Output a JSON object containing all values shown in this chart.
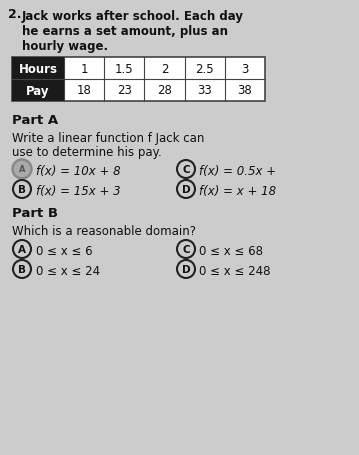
{
  "bg_color": "#cccccc",
  "problem_text_line1": "Jack works after school. Each day",
  "problem_text_line2": "he earns a set amount, plus an",
  "problem_text_line3": "hourly wage.",
  "hours_vals": [
    "1",
    "1.5",
    "2",
    "2.5",
    "3"
  ],
  "pay_vals": [
    "18",
    "23",
    "28",
    "33",
    "38"
  ],
  "part_a_label": "Part A",
  "part_a_q1": "Write a linear function f Jack can",
  "part_a_q2": "use to determine his pay.",
  "part_a_A": "f(x) = 10x + 8",
  "part_a_C": "f(x) = 0.5x +",
  "part_a_B": "f(x) = 15x + 3",
  "part_a_D": "f(x) = x + 18",
  "part_b_label": "Part B",
  "part_b_q": "Which is a reasonable domain?",
  "part_b_A": "0 ≤ x ≤ 6",
  "part_b_C": "0 ≤ x ≤ 68",
  "part_b_B": "0 ≤ x ≤ 24",
  "part_b_D": "0 ≤ x ≤ 248",
  "header_bg": "#1a1a1a",
  "header_fg": "#ffffff",
  "cell_bg": "#ffffff",
  "cell_fg": "#111111",
  "text_color": "#111111",
  "circle_color": "#222222"
}
